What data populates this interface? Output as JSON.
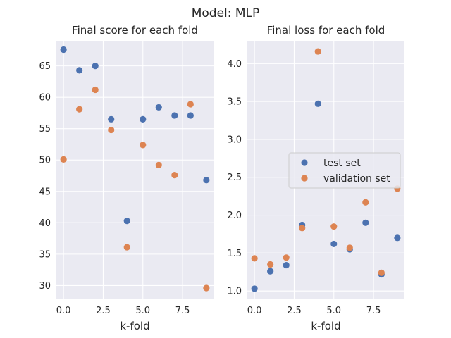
{
  "suptitle": "Model: MLP",
  "colors": {
    "test": "#4c72b0",
    "validation": "#dd8452"
  },
  "chart_data": [
    {
      "type": "scatter",
      "title": "Final score for each fold",
      "xlabel": "k-fold",
      "ylabel": "",
      "xlim": [
        -0.45,
        9.45
      ],
      "ylim": [
        27.8,
        69.0
      ],
      "xticks": [
        0.0,
        2.5,
        5.0,
        7.5
      ],
      "xtick_labels": [
        "0.0",
        "2.5",
        "5.0",
        "7.5"
      ],
      "yticks": [
        30,
        35,
        40,
        45,
        50,
        55,
        60,
        65
      ],
      "ytick_labels": [
        "30",
        "35",
        "40",
        "45",
        "50",
        "55",
        "60",
        "65"
      ],
      "grid": true,
      "series": [
        {
          "name": "test set",
          "x": [
            0,
            1,
            2,
            3,
            4,
            5,
            6,
            7,
            8,
            9
          ],
          "y": [
            67.6,
            64.3,
            65.0,
            56.5,
            40.3,
            56.5,
            58.4,
            57.1,
            57.1,
            46.8
          ]
        },
        {
          "name": "validation set",
          "x": [
            0,
            1,
            2,
            3,
            4,
            5,
            6,
            7,
            8,
            9
          ],
          "y": [
            50.1,
            58.1,
            61.2,
            54.8,
            36.1,
            52.4,
            49.2,
            47.6,
            58.9,
            29.6
          ]
        }
      ]
    },
    {
      "type": "scatter",
      "title": "Final loss for each fold",
      "xlabel": "k-fold",
      "ylabel": "",
      "xlim": [
        -0.45,
        9.45
      ],
      "ylim": [
        0.89,
        4.3
      ],
      "xticks": [
        0.0,
        2.5,
        5.0,
        7.5
      ],
      "xtick_labels": [
        "0.0",
        "2.5",
        "5.0",
        "7.5"
      ],
      "yticks": [
        1.0,
        1.5,
        2.0,
        2.5,
        3.0,
        3.5,
        4.0
      ],
      "ytick_labels": [
        "1.0",
        "1.5",
        "2.0",
        "2.5",
        "3.0",
        "3.5",
        "4.0"
      ],
      "grid": true,
      "legend": {
        "placement": "center-right",
        "entries": [
          "test set",
          "validation set"
        ]
      },
      "series": [
        {
          "name": "test set",
          "x": [
            0,
            1,
            2,
            3,
            4,
            5,
            6,
            7,
            8,
            9
          ],
          "y": [
            1.03,
            1.26,
            1.34,
            1.87,
            3.47,
            1.62,
            1.55,
            1.9,
            1.22,
            1.7
          ]
        },
        {
          "name": "validation set",
          "x": [
            0,
            1,
            2,
            3,
            4,
            5,
            6,
            7,
            8,
            9
          ],
          "y": [
            1.43,
            1.35,
            1.44,
            1.83,
            4.16,
            1.85,
            1.57,
            2.17,
            1.24,
            2.35
          ]
        }
      ]
    }
  ]
}
